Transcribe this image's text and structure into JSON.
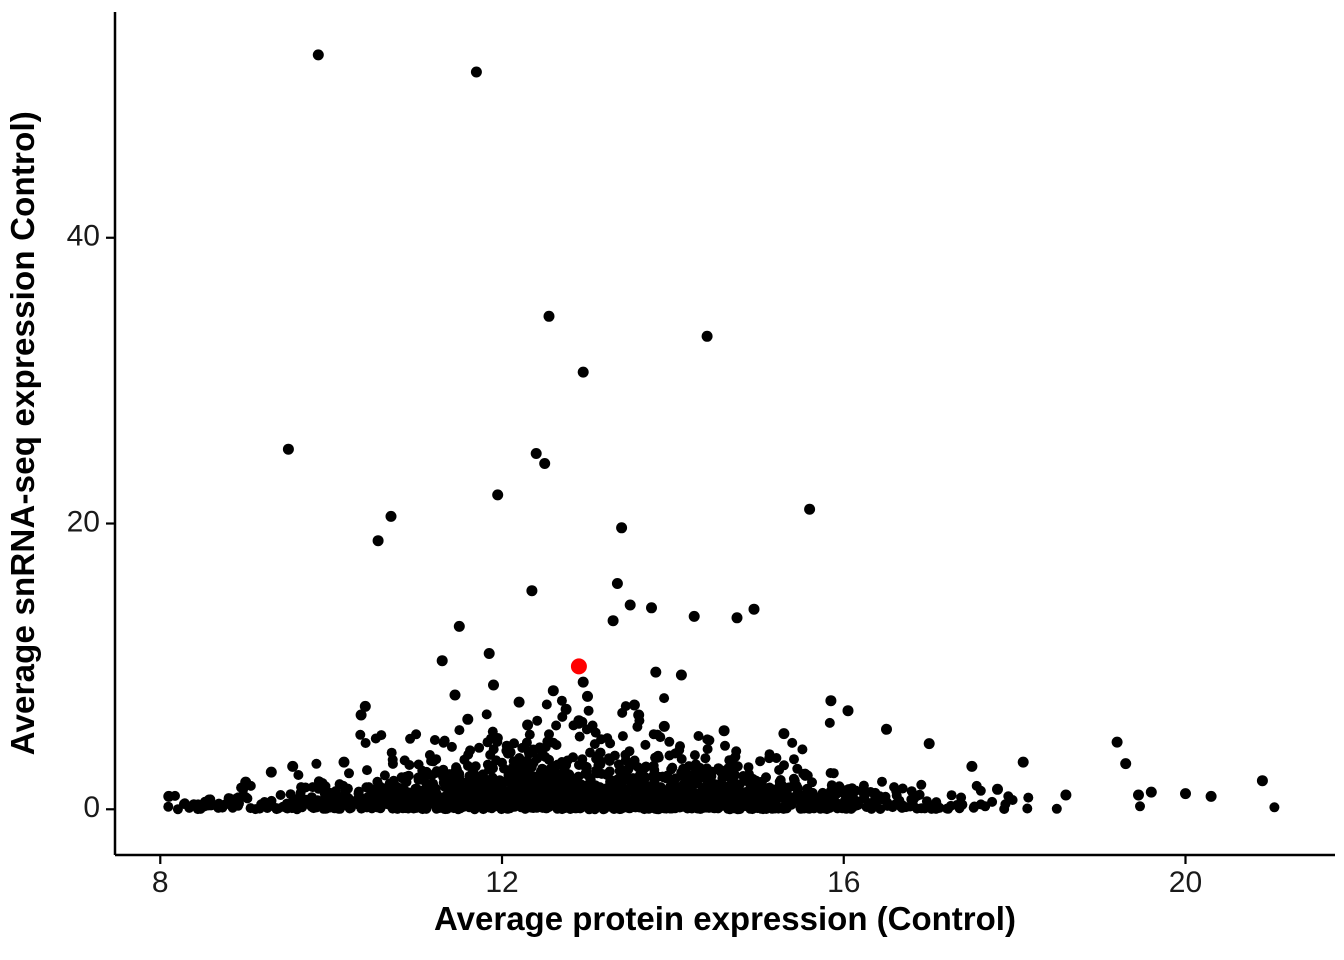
{
  "chart_data": {
    "type": "scatter",
    "title": "",
    "xlabel": "Average protein expression (Control)",
    "ylabel": "Average snRNA-seq expression Control)",
    "x_ticks": [
      8,
      12,
      16,
      20
    ],
    "y_ticks": [
      0,
      20,
      40
    ],
    "xlim": [
      7.47,
      21.75
    ],
    "ylim": [
      -3.2,
      55.8
    ],
    "grid": false,
    "legend": "none",
    "point_color": "#000000",
    "axis_color": "#000000",
    "tick_label_color": "#1a1a1a",
    "marker_radius_px": 5,
    "highlight_radius_px": 8,
    "highlight_point": {
      "x": 12.9,
      "y": 10.0,
      "color": "#FF0000",
      "note": "single red highlighted gene"
    },
    "notable_points": [
      [
        9.85,
        52.8
      ],
      [
        11.7,
        51.6
      ],
      [
        12.55,
        34.5
      ],
      [
        14.4,
        33.1
      ],
      [
        12.95,
        30.6
      ],
      [
        9.5,
        25.2
      ],
      [
        12.4,
        24.9
      ],
      [
        12.5,
        24.2
      ],
      [
        11.95,
        22.0
      ],
      [
        15.6,
        21.0
      ],
      [
        10.7,
        20.5
      ],
      [
        13.4,
        19.7
      ],
      [
        10.55,
        18.8
      ],
      [
        13.35,
        15.8
      ],
      [
        12.35,
        15.3
      ],
      [
        13.5,
        14.3
      ],
      [
        13.75,
        14.1
      ],
      [
        14.95,
        14.0
      ],
      [
        14.25,
        13.5
      ],
      [
        14.75,
        13.4
      ],
      [
        13.3,
        13.2
      ],
      [
        11.5,
        12.8
      ],
      [
        11.85,
        10.9
      ],
      [
        11.3,
        10.4
      ],
      [
        13.8,
        9.6
      ],
      [
        14.1,
        9.4
      ],
      [
        12.95,
        8.9
      ],
      [
        11.9,
        8.7
      ],
      [
        12.6,
        8.3
      ],
      [
        11.45,
        8.0
      ],
      [
        13.0,
        7.9
      ],
      [
        15.85,
        7.6
      ],
      [
        12.2,
        7.5
      ],
      [
        13.55,
        7.3
      ],
      [
        10.4,
        7.2
      ],
      [
        12.75,
        7.0
      ],
      [
        16.05,
        6.9
      ],
      [
        10.35,
        6.6
      ],
      [
        13.6,
        6.6
      ],
      [
        11.6,
        6.3
      ],
      [
        12.9,
        6.2
      ],
      [
        12.3,
        5.9
      ],
      [
        13.9,
        5.8
      ],
      [
        16.5,
        5.6
      ],
      [
        14.6,
        5.5
      ],
      [
        15.3,
        5.3
      ],
      [
        19.2,
        4.7
      ],
      [
        17.0,
        4.6
      ],
      [
        18.1,
        3.3
      ],
      [
        19.3,
        3.2
      ],
      [
        10.15,
        3.3
      ],
      [
        17.5,
        3.0
      ],
      [
        9.55,
        3.0
      ],
      [
        9.3,
        2.6
      ],
      [
        20.9,
        2.0
      ],
      [
        9.0,
        1.9
      ],
      [
        17.8,
        1.4
      ],
      [
        19.6,
        1.2
      ],
      [
        20.0,
        1.1
      ],
      [
        19.45,
        1.0
      ],
      [
        18.6,
        1.0
      ],
      [
        8.1,
        0.9
      ],
      [
        20.3,
        0.9
      ],
      [
        8.55,
        0.3
      ]
    ],
    "cloud": {
      "note": "dense unlabeled cloud of genes hugging y≈0, densest for x 10.5–15, thinning toward x 8 and x 21",
      "count": 1900,
      "seed": 42,
      "x_mean": 12.9,
      "x_sd": 1.9,
      "x_min": 8.05,
      "x_max": 21.1,
      "y_scale_center": 1.45,
      "y_scale_edge": 0.18,
      "y_sigma_x": 2.3,
      "y_max": 8.8
    }
  }
}
